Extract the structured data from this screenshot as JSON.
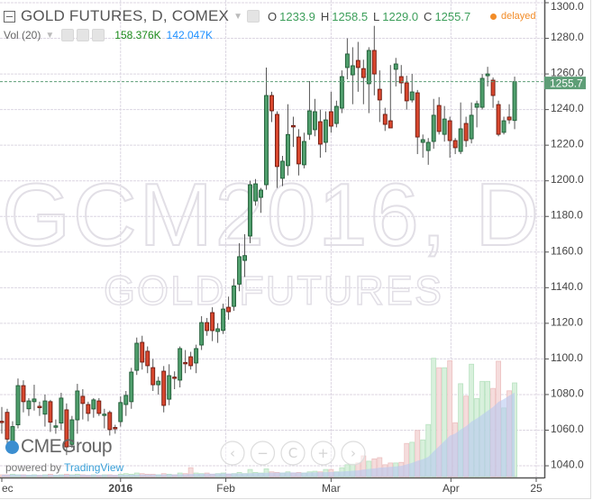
{
  "header": {
    "title": "GOLD FUTURES, D, COMEX",
    "ohlc": [
      {
        "label": "O",
        "value": "1233.9"
      },
      {
        "label": "H",
        "value": "1258.5"
      },
      {
        "label": "L",
        "value": "1229.0"
      },
      {
        "label": "C",
        "value": "1255.7"
      }
    ],
    "status": "delayed"
  },
  "volume_legend": {
    "label": "Vol (20)",
    "volume": "158.376K",
    "volume_ma": "142.047K"
  },
  "branding": {
    "logo": "CMEGroup",
    "powered_by": "powered by ",
    "powered_brand": "TradingView"
  },
  "watermark": {
    "symbol": "GCM2016, D",
    "name": "GOLD FUTURES"
  },
  "nav_buttons": [
    {
      "name": "scroll-left",
      "glyph": "‹"
    },
    {
      "name": "zoom-out",
      "glyph": "−"
    },
    {
      "name": "reset",
      "glyph": "C"
    },
    {
      "name": "zoom-in",
      "glyph": "+"
    },
    {
      "name": "scroll-right",
      "glyph": "›"
    }
  ],
  "colors": {
    "up": "#4f9e6c",
    "up_border": "#1f5a35",
    "down": "#d8472e",
    "down_border": "#6b1a10",
    "last_price_bg": "#5e9e77",
    "volume_ma": "#b8c8f0"
  },
  "chart_data": {
    "type": "candlestick",
    "ylim": [
      1034,
      1302
    ],
    "yticks": [
      "1300.0",
      "1280.0",
      "1260.0",
      "1240.0",
      "1220.0",
      "1200.0",
      "1180.0",
      "1160.0",
      "1140.0",
      "1120.0",
      "1100.0",
      "1080.0",
      "1060.0",
      "1040.0"
    ],
    "xticks": [
      {
        "label": "ec",
        "at_index": 0,
        "bold": false
      },
      {
        "label": "2016",
        "at_index": 22,
        "bold": true
      },
      {
        "label": "Feb",
        "at_index": 41.5,
        "bold": false
      },
      {
        "label": "Mar",
        "at_index": 61,
        "bold": false
      },
      {
        "label": "Apr",
        "at_index": 83.2,
        "bold": false
      },
      {
        "label": "25",
        "at_index": 99,
        "bold": false
      }
    ],
    "last_price": "1255.7",
    "grid": true,
    "candles": [
      [
        1065,
        1073,
        1058,
        1064.5
      ],
      [
        1070,
        1072,
        1052,
        1055
      ],
      [
        1050,
        1065,
        1047,
        1062
      ],
      [
        1063,
        1089,
        1061,
        1085
      ],
      [
        1085,
        1088,
        1070,
        1076
      ],
      [
        1072,
        1078,
        1068,
        1076.4
      ],
      [
        1076,
        1085.5,
        1071,
        1077.5
      ],
      [
        1073.4,
        1076,
        1068,
        1072.6
      ],
      [
        1069,
        1080,
        1062,
        1076.4
      ],
      [
        1076,
        1077,
        1059,
        1064.5
      ],
      [
        1062.2,
        1066,
        1058,
        1062.4
      ],
      [
        1064,
        1081,
        1060,
        1078
      ],
      [
        1071.4,
        1075,
        1046,
        1050.6
      ],
      [
        1052,
        1068,
        1050,
        1065.8
      ],
      [
        1065.8,
        1086,
        1058,
        1082
      ],
      [
        1079,
        1083,
        1066,
        1075
      ],
      [
        1074.4,
        1076,
        1065,
        1069.4
      ],
      [
        1071.9,
        1078,
        1067,
        1077
      ],
      [
        1076.4,
        1078,
        1068,
        1069.4
      ],
      [
        1068.8,
        1072,
        1061,
        1069
      ],
      [
        1069.9,
        1071,
        1057,
        1060.3
      ],
      [
        1061.5,
        1063,
        1058,
        1061
      ],
      [
        1064.8,
        1079,
        1062,
        1075.5
      ],
      [
        1074.4,
        1082,
        1068,
        1079.5
      ],
      [
        1076,
        1095,
        1072,
        1092.6
      ],
      [
        1093.6,
        1112,
        1091,
        1108.8
      ],
      [
        1109.3,
        1113,
        1094,
        1098.2
      ],
      [
        1104.3,
        1107,
        1092,
        1096.2
      ],
      [
        1095.1,
        1100,
        1082,
        1085.5
      ],
      [
        1085.5,
        1090,
        1080,
        1087.5
      ],
      [
        1093.1,
        1096,
        1070,
        1073.9
      ],
      [
        1077.4,
        1097,
        1074,
        1090.6
      ],
      [
        1089.8,
        1093,
        1083,
        1089.4
      ],
      [
        1088.1,
        1107,
        1084,
        1105.8
      ],
      [
        1098,
        1105,
        1092,
        1097.6
      ],
      [
        1101.2,
        1104,
        1094,
        1096.2
      ],
      [
        1097.7,
        1108,
        1092,
        1105.8
      ],
      [
        1107.8,
        1124,
        1105,
        1120.4
      ],
      [
        1120.4,
        1123,
        1113,
        1115.9
      ],
      [
        1126,
        1129,
        1110,
        1115.9
      ],
      [
        1115.4,
        1120,
        1109,
        1116.9
      ],
      [
        1116,
        1131,
        1114,
        1128
      ],
      [
        1129,
        1135,
        1122,
        1126.5
      ],
      [
        1129.5,
        1145,
        1127,
        1141
      ],
      [
        1142,
        1165,
        1138,
        1157.4
      ],
      [
        1155.3,
        1170,
        1146,
        1158
      ],
      [
        1169,
        1200,
        1165,
        1197.8
      ],
      [
        1188.7,
        1201,
        1186,
        1198.3
      ],
      [
        1190.7,
        1196,
        1182,
        1194.8
      ],
      [
        1197.8,
        1263.6,
        1195,
        1247.9
      ],
      [
        1247.9,
        1250,
        1233,
        1239.3
      ],
      [
        1237.3,
        1239,
        1196,
        1208
      ],
      [
        1201.4,
        1214,
        1197,
        1211
      ],
      [
        1208.5,
        1243,
        1203,
        1226
      ],
      [
        1231,
        1236,
        1219,
        1230.4
      ],
      [
        1224.6,
        1229,
        1203,
        1209.5
      ],
      [
        1209,
        1227,
        1207,
        1222.1
      ],
      [
        1226.1,
        1256,
        1223,
        1239.3
      ],
      [
        1228.7,
        1246,
        1225,
        1238.8
      ],
      [
        1233.2,
        1240,
        1213,
        1220.6
      ],
      [
        1221.6,
        1239,
        1216,
        1234.2
      ],
      [
        1238.8,
        1250,
        1227,
        1230.7
      ],
      [
        1232.2,
        1245,
        1230,
        1241.8
      ],
      [
        1240.8,
        1262,
        1238,
        1258.5
      ],
      [
        1263.6,
        1280,
        1257,
        1271.2
      ],
      [
        1259.5,
        1275,
        1243,
        1264.6
      ],
      [
        1267.6,
        1278,
        1250,
        1263.6
      ],
      [
        1263,
        1268,
        1243,
        1258
      ],
      [
        1254.5,
        1275,
        1238,
        1273.2
      ],
      [
        1273.2,
        1287,
        1248,
        1260
      ],
      [
        1251.4,
        1262,
        1233,
        1245.4
      ],
      [
        1237.3,
        1241,
        1228,
        1231.7
      ],
      [
        1233.7,
        1265,
        1230,
        1229.7
      ],
      [
        1262.6,
        1269,
        1253,
        1265.6
      ],
      [
        1258.5,
        1265,
        1249,
        1255
      ],
      [
        1255,
        1259,
        1240,
        1244.9
      ],
      [
        1245.4,
        1260,
        1244,
        1249.9
      ],
      [
        1249.4,
        1251,
        1215,
        1224.6
      ],
      [
        1221.6,
        1226,
        1213,
        1223.1
      ],
      [
        1217,
        1224,
        1209,
        1221.6
      ],
      [
        1222.1,
        1246,
        1218,
        1236.8
      ],
      [
        1242.3,
        1247,
        1226,
        1227.7
      ],
      [
        1226.1,
        1242,
        1222,
        1234.7
      ],
      [
        1233.7,
        1236,
        1213,
        1222.6
      ],
      [
        1222.6,
        1224,
        1215,
        1218.6
      ],
      [
        1216.5,
        1244,
        1215,
        1229.2
      ],
      [
        1232.2,
        1236,
        1219,
        1222.6
      ],
      [
        1223.6,
        1244,
        1221,
        1236.8
      ],
      [
        1241.3,
        1245,
        1230,
        1243.3
      ],
      [
        1241.3,
        1260,
        1240,
        1257.5
      ],
      [
        1259,
        1264,
        1253,
        1260
      ],
      [
        1256.5,
        1258,
        1241,
        1247.9
      ],
      [
        1242.8,
        1245,
        1225,
        1226.1
      ],
      [
        1227.2,
        1236,
        1226,
        1233.7
      ],
      [
        1235.8,
        1243,
        1232,
        1234.2
      ],
      [
        1233.9,
        1258.5,
        1229,
        1255.7
      ]
    ],
    "volume_k": [
      3,
      3,
      4,
      3,
      3,
      2,
      3,
      2,
      3,
      4,
      2,
      3,
      4,
      3,
      4,
      3,
      2,
      3,
      2,
      3,
      3,
      2,
      4,
      5,
      4,
      6,
      5,
      4,
      4,
      3,
      5,
      4,
      3,
      6,
      5,
      15,
      6,
      5,
      6,
      4,
      5,
      6,
      4,
      5,
      7,
      5,
      12,
      7,
      6,
      13,
      8,
      7,
      6,
      8,
      6,
      7,
      6,
      8,
      9,
      8,
      12,
      12,
      8,
      15,
      20,
      21,
      23,
      35,
      26,
      30,
      32,
      20,
      23,
      23,
      24,
      56,
      58,
      78,
      62,
      88,
      200,
      184,
      184,
      196,
      91,
      157,
      136,
      190,
      132,
      161,
      161,
      149,
      195,
      116,
      145,
      158.376
    ],
    "volume_ma_period": 20
  }
}
